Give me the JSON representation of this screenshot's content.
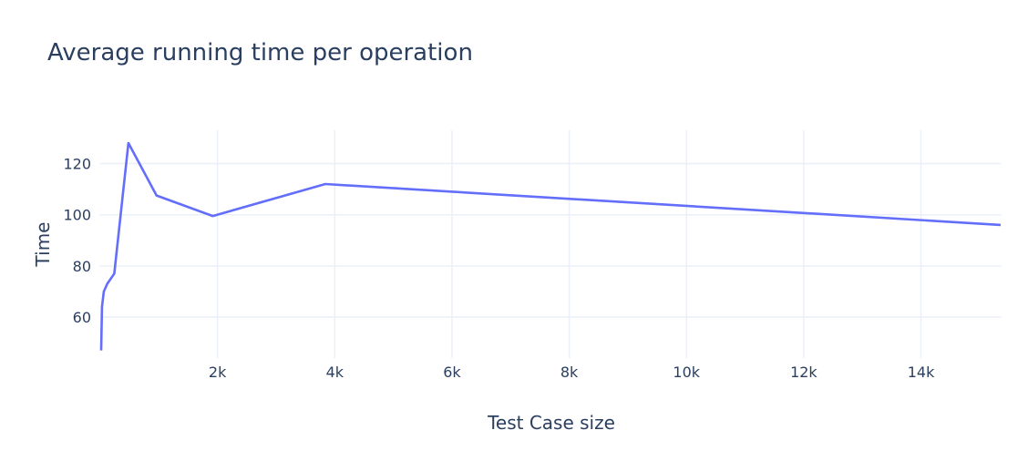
{
  "chart_data": {
    "type": "line",
    "title": "Average running time per operation",
    "xlabel": "Test Case size",
    "ylabel": "Time",
    "xlim": [
      0,
      15360
    ],
    "ylim": [
      44,
      133
    ],
    "x_ticks": [
      {
        "value": 2000,
        "label": "2k"
      },
      {
        "value": 4000,
        "label": "4k"
      },
      {
        "value": 6000,
        "label": "6k"
      },
      {
        "value": 8000,
        "label": "8k"
      },
      {
        "value": 10000,
        "label": "10k"
      },
      {
        "value": 12000,
        "label": "12k"
      },
      {
        "value": 14000,
        "label": "14k"
      }
    ],
    "y_ticks": [
      {
        "value": 60,
        "label": "60"
      },
      {
        "value": 80,
        "label": "80"
      },
      {
        "value": 100,
        "label": "100"
      },
      {
        "value": 120,
        "label": "120"
      }
    ],
    "grid": true,
    "legend": false,
    "series": [
      {
        "color": "#636efa",
        "x": [
          15,
          30,
          60,
          120,
          240,
          480,
          960,
          1920,
          3840,
          15360
        ],
        "y": [
          47,
          64,
          70,
          73,
          77,
          128,
          107.5,
          99.5,
          112,
          96
        ]
      }
    ]
  }
}
